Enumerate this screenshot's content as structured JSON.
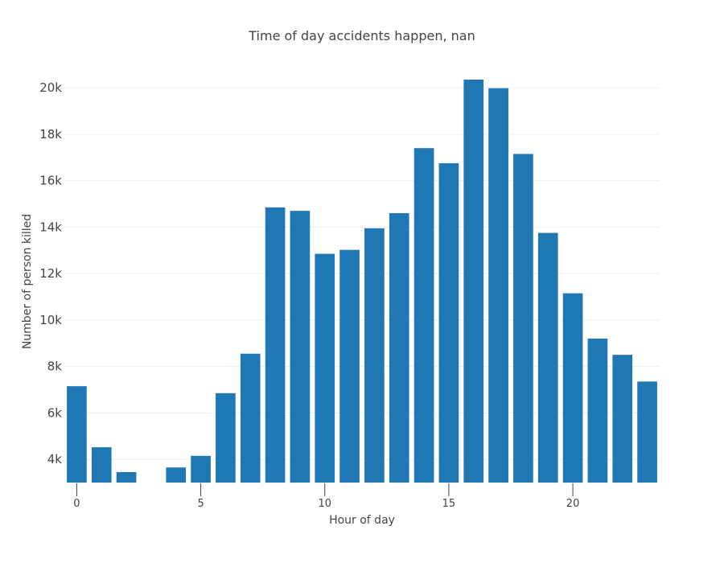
{
  "chart_data": {
    "type": "bar",
    "title": "Time of day accidents happen, nan",
    "xlabel": "Hour of day",
    "ylabel": "Number of person killed",
    "x": [
      0,
      1,
      2,
      3,
      4,
      5,
      6,
      7,
      8,
      9,
      10,
      11,
      12,
      13,
      14,
      15,
      16,
      17,
      18,
      19,
      20,
      21,
      22,
      23
    ],
    "values": [
      7150,
      4520,
      3450,
      3000,
      3650,
      4150,
      6850,
      8550,
      14850,
      14700,
      12850,
      13020,
      13950,
      14600,
      17400,
      16750,
      20350,
      19980,
      17150,
      13750,
      11150,
      9200,
      8500,
      7350
    ],
    "ylim": [
      3000,
      20350
    ],
    "xlim": [
      -0.5,
      23.5
    ],
    "y_ticks": [
      4000,
      6000,
      8000,
      10000,
      12000,
      14000,
      16000,
      18000,
      20000
    ],
    "y_tick_labels": [
      "4k",
      "6k",
      "8k",
      "10k",
      "12k",
      "14k",
      "16k",
      "18k",
      "20k"
    ],
    "x_ticks": [
      0,
      5,
      10,
      15,
      20
    ],
    "x_tick_labels": [
      "0",
      "5",
      "10",
      "15",
      "20"
    ],
    "grid": true,
    "bar_color": "#1f77b4"
  }
}
